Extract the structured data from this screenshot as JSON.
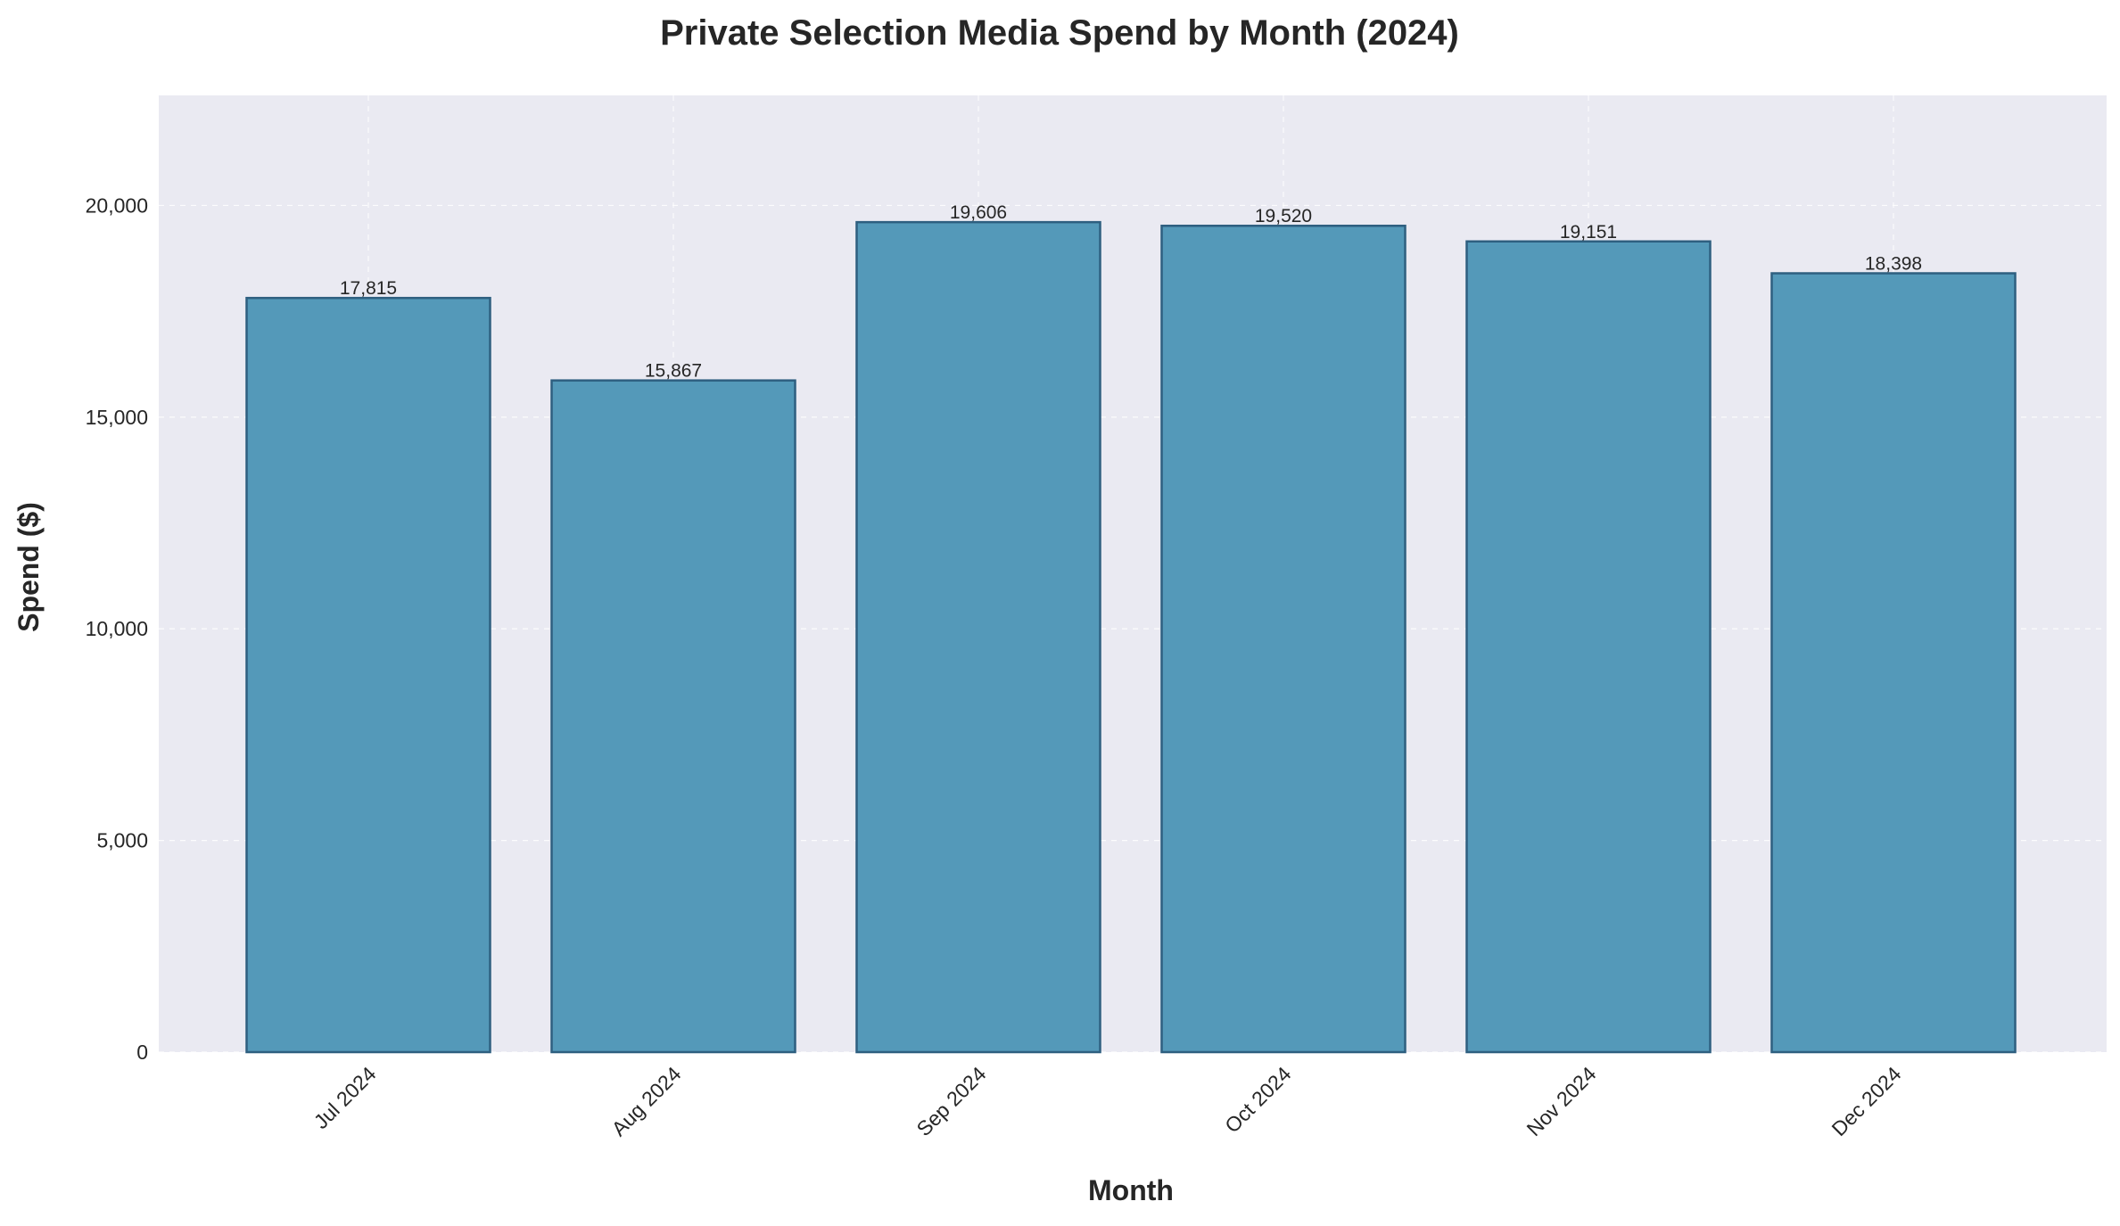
{
  "chart_data": {
    "type": "bar",
    "title": "Private Selection Media Spend by Month (2024)",
    "xlabel": "Month",
    "ylabel": "Spend ($)",
    "categories": [
      "Jul 2024",
      "Aug 2024",
      "Sep 2024",
      "Oct 2024",
      "Nov 2024",
      "Dec 2024"
    ],
    "values": [
      17815,
      15867,
      19606,
      19520,
      19151,
      18398
    ],
    "value_labels": [
      "17,815",
      "15,867",
      "19,606",
      "19,520",
      "19,151",
      "18,398"
    ],
    "ylim": [
      0,
      22600
    ],
    "yticks": [
      0,
      5000,
      10000,
      15000,
      20000
    ],
    "ytick_labels": [
      "0",
      "5,000",
      "10,000",
      "15,000",
      "20,000"
    ],
    "grid": true,
    "colors": {
      "bar_fill": "#5499b9",
      "bar_edge": "#2e5f80",
      "plot_background": "#eaeaf2"
    }
  }
}
